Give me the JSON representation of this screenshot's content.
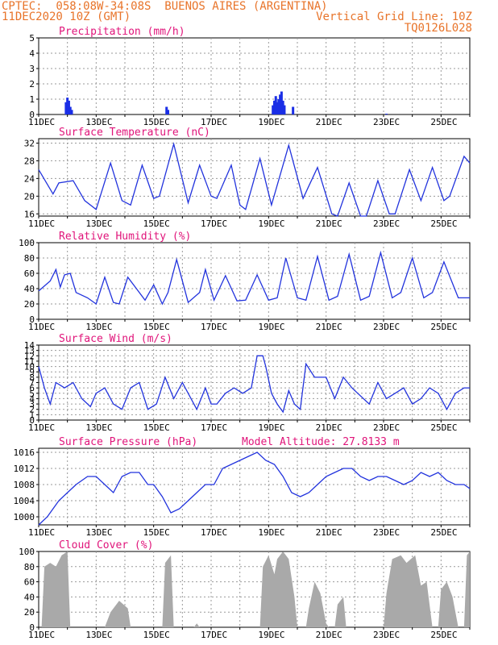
{
  "header": {
    "line1": "CPTEC:  058:08W-34:08S  BUENOS AIRES (ARGENTINA)",
    "line2_left": "11DEC2020 10Z (GMT)",
    "line2_right": "Vertical Grid Line: 10Z",
    "line3_right": "TQ0126L028"
  },
  "colors": {
    "line": "#2233dd",
    "bar": "#1a2ee6",
    "cloud": "#a9a9a9",
    "title": "#e0147a",
    "header": "#e8742a",
    "grid": "#9a9a9a"
  },
  "chart_data": {
    "x_ticks": [
      "11DEC",
      "13DEC",
      "15DEC",
      "17DEC",
      "19DEC",
      "21DEC",
      "23DEC",
      "25DEC"
    ],
    "x_range_days": [
      0,
      15
    ],
    "panels": [
      {
        "id": "precip",
        "type": "bar",
        "title": "Precipitation (mm/h)",
        "ylim": [
          0,
          5
        ],
        "yticks": [
          0,
          1,
          2,
          3,
          4,
          5
        ],
        "points": [
          [
            0.95,
            0.8
          ],
          [
            1.0,
            1.1
          ],
          [
            1.05,
            0.9
          ],
          [
            1.1,
            0.5
          ],
          [
            1.15,
            0.3
          ],
          [
            4.45,
            0.5
          ],
          [
            4.5,
            0.3
          ],
          [
            8.15,
            0.6
          ],
          [
            8.2,
            0.9
          ],
          [
            8.25,
            1.2
          ],
          [
            8.3,
            0.8
          ],
          [
            8.35,
            1.0
          ],
          [
            8.4,
            1.3
          ],
          [
            8.45,
            1.5
          ],
          [
            8.5,
            0.9
          ],
          [
            8.55,
            0.6
          ],
          [
            8.85,
            0.5
          ],
          [
            12.1,
            0.05
          ]
        ]
      },
      {
        "id": "temp",
        "type": "line",
        "title": "Surface Temperature (nC)",
        "ylim": [
          15.5,
          33
        ],
        "yticks": [
          16,
          20,
          24,
          28,
          32
        ],
        "points": [
          [
            0,
            26
          ],
          [
            0.5,
            20.5
          ],
          [
            0.7,
            23
          ],
          [
            1.2,
            23.5
          ],
          [
            1.6,
            19
          ],
          [
            2.0,
            17
          ],
          [
            2.5,
            27.5
          ],
          [
            2.9,
            19
          ],
          [
            3.2,
            18
          ],
          [
            3.6,
            27
          ],
          [
            4.0,
            19.5
          ],
          [
            4.2,
            20
          ],
          [
            4.7,
            31.8
          ],
          [
            5.2,
            18.5
          ],
          [
            5.6,
            27
          ],
          [
            6.0,
            20
          ],
          [
            6.2,
            19.5
          ],
          [
            6.7,
            27
          ],
          [
            7.0,
            18
          ],
          [
            7.2,
            17
          ],
          [
            7.7,
            28.5
          ],
          [
            8.1,
            18
          ],
          [
            8.7,
            31.5
          ],
          [
            9.2,
            19.5
          ],
          [
            9.7,
            26.5
          ],
          [
            10.2,
            16
          ],
          [
            10.4,
            15.5
          ],
          [
            10.8,
            23
          ],
          [
            11.2,
            15.5
          ],
          [
            11.4,
            15.5
          ],
          [
            11.8,
            23.5
          ],
          [
            12.2,
            16
          ],
          [
            12.4,
            16
          ],
          [
            12.9,
            26
          ],
          [
            13.3,
            19
          ],
          [
            13.7,
            26.5
          ],
          [
            14.1,
            19
          ],
          [
            14.3,
            20
          ],
          [
            14.8,
            29
          ],
          [
            15.0,
            27.5
          ]
        ]
      },
      {
        "id": "rh",
        "type": "line",
        "title": "Relative Humidity (%)",
        "ylim": [
          0,
          100
        ],
        "yticks": [
          0,
          20,
          40,
          60,
          80,
          100
        ],
        "points": [
          [
            0,
            37
          ],
          [
            0.4,
            50
          ],
          [
            0.6,
            65
          ],
          [
            0.75,
            42
          ],
          [
            0.9,
            58
          ],
          [
            1.1,
            60
          ],
          [
            1.3,
            35
          ],
          [
            1.7,
            28
          ],
          [
            2.0,
            20
          ],
          [
            2.3,
            55
          ],
          [
            2.6,
            22
          ],
          [
            2.8,
            20
          ],
          [
            3.1,
            55
          ],
          [
            3.4,
            40
          ],
          [
            3.7,
            25
          ],
          [
            4.0,
            45
          ],
          [
            4.3,
            20
          ],
          [
            4.5,
            35
          ],
          [
            4.8,
            78
          ],
          [
            5.2,
            22
          ],
          [
            5.6,
            35
          ],
          [
            5.8,
            65
          ],
          [
            6.1,
            25
          ],
          [
            6.5,
            57
          ],
          [
            6.9,
            24
          ],
          [
            7.2,
            25
          ],
          [
            7.6,
            58
          ],
          [
            8.0,
            25
          ],
          [
            8.3,
            28
          ],
          [
            8.6,
            80
          ],
          [
            9.0,
            28
          ],
          [
            9.3,
            25
          ],
          [
            9.7,
            82
          ],
          [
            10.1,
            25
          ],
          [
            10.4,
            30
          ],
          [
            10.8,
            85
          ],
          [
            11.2,
            25
          ],
          [
            11.5,
            30
          ],
          [
            11.9,
            87
          ],
          [
            12.3,
            28
          ],
          [
            12.6,
            35
          ],
          [
            13.0,
            80
          ],
          [
            13.4,
            28
          ],
          [
            13.7,
            35
          ],
          [
            14.1,
            75
          ],
          [
            14.6,
            28
          ],
          [
            15.0,
            28
          ]
        ]
      },
      {
        "id": "wind",
        "type": "line",
        "title": "Surface Wind (m/s)",
        "ylim": [
          0,
          14
        ],
        "yticks": [
          0,
          1,
          2,
          3,
          4,
          5,
          6,
          7,
          8,
          9,
          10,
          11,
          12,
          13,
          14
        ],
        "points": [
          [
            0,
            10
          ],
          [
            0.2,
            6
          ],
          [
            0.4,
            3
          ],
          [
            0.6,
            7
          ],
          [
            0.9,
            6
          ],
          [
            1.2,
            7
          ],
          [
            1.5,
            4
          ],
          [
            1.8,
            2.5
          ],
          [
            2.0,
            5
          ],
          [
            2.3,
            6
          ],
          [
            2.6,
            3
          ],
          [
            2.9,
            2
          ],
          [
            3.2,
            6
          ],
          [
            3.5,
            7
          ],
          [
            3.8,
            2
          ],
          [
            4.1,
            3
          ],
          [
            4.4,
            8
          ],
          [
            4.7,
            4
          ],
          [
            5.0,
            7
          ],
          [
            5.2,
            5
          ],
          [
            5.5,
            2
          ],
          [
            5.8,
            6
          ],
          [
            6.0,
            3
          ],
          [
            6.2,
            3
          ],
          [
            6.5,
            5
          ],
          [
            6.8,
            6
          ],
          [
            7.1,
            5
          ],
          [
            7.4,
            6
          ],
          [
            7.6,
            12
          ],
          [
            7.8,
            12
          ],
          [
            7.9,
            10
          ],
          [
            8.1,
            5
          ],
          [
            8.3,
            3
          ],
          [
            8.5,
            1.5
          ],
          [
            8.7,
            5.5
          ],
          [
            8.9,
            3
          ],
          [
            9.1,
            2
          ],
          [
            9.3,
            10.5
          ],
          [
            9.6,
            8
          ],
          [
            10.0,
            8
          ],
          [
            10.3,
            4
          ],
          [
            10.6,
            8
          ],
          [
            10.9,
            6
          ],
          [
            11.1,
            5
          ],
          [
            11.5,
            3
          ],
          [
            11.8,
            7
          ],
          [
            12.1,
            4
          ],
          [
            12.4,
            5
          ],
          [
            12.7,
            6
          ],
          [
            13.0,
            3
          ],
          [
            13.3,
            4
          ],
          [
            13.6,
            6
          ],
          [
            13.9,
            5
          ],
          [
            14.2,
            2
          ],
          [
            14.5,
            5
          ],
          [
            14.8,
            6
          ],
          [
            15.0,
            6
          ]
        ]
      },
      {
        "id": "pressure",
        "type": "line",
        "title": "Surface Pressure (hPa)",
        "subtitle": "Model Altitude: 27.8133 m",
        "ylim": [
          998,
          1017
        ],
        "yticks": [
          1000,
          1004,
          1008,
          1012,
          1016
        ],
        "points": [
          [
            0,
            998
          ],
          [
            0.3,
            1000
          ],
          [
            0.7,
            1004
          ],
          [
            1.0,
            1006
          ],
          [
            1.3,
            1008
          ],
          [
            1.7,
            1010
          ],
          [
            2.0,
            1010
          ],
          [
            2.3,
            1008
          ],
          [
            2.6,
            1006
          ],
          [
            2.9,
            1010
          ],
          [
            3.2,
            1011
          ],
          [
            3.5,
            1011
          ],
          [
            3.8,
            1008
          ],
          [
            4.0,
            1008
          ],
          [
            4.3,
            1005
          ],
          [
            4.6,
            1001
          ],
          [
            4.9,
            1002
          ],
          [
            5.2,
            1004
          ],
          [
            5.5,
            1006
          ],
          [
            5.8,
            1008
          ],
          [
            6.1,
            1008
          ],
          [
            6.4,
            1012
          ],
          [
            6.7,
            1013
          ],
          [
            7.0,
            1014
          ],
          [
            7.3,
            1015
          ],
          [
            7.6,
            1016
          ],
          [
            7.9,
            1014
          ],
          [
            8.2,
            1013
          ],
          [
            8.5,
            1010
          ],
          [
            8.8,
            1006
          ],
          [
            9.1,
            1005
          ],
          [
            9.4,
            1006
          ],
          [
            9.7,
            1008
          ],
          [
            10.0,
            1010
          ],
          [
            10.3,
            1011
          ],
          [
            10.6,
            1012
          ],
          [
            10.9,
            1012
          ],
          [
            11.2,
            1010
          ],
          [
            11.5,
            1009
          ],
          [
            11.8,
            1010
          ],
          [
            12.1,
            1010
          ],
          [
            12.4,
            1009
          ],
          [
            12.7,
            1008
          ],
          [
            13.0,
            1009
          ],
          [
            13.3,
            1011
          ],
          [
            13.6,
            1010
          ],
          [
            13.9,
            1011
          ],
          [
            14.2,
            1009
          ],
          [
            14.5,
            1008
          ],
          [
            14.8,
            1008
          ],
          [
            15.0,
            1007
          ]
        ]
      },
      {
        "id": "cloud",
        "type": "area",
        "title": "Cloud Cover (%)",
        "ylim": [
          0,
          100
        ],
        "yticks": [
          0,
          20,
          40,
          60,
          80,
          100
        ],
        "points": [
          [
            0,
            0
          ],
          [
            0.1,
            0
          ],
          [
            0.2,
            80
          ],
          [
            0.4,
            85
          ],
          [
            0.6,
            80
          ],
          [
            0.8,
            95
          ],
          [
            1.0,
            100
          ],
          [
            1.1,
            0
          ],
          [
            2.3,
            0
          ],
          [
            2.5,
            20
          ],
          [
            2.8,
            35
          ],
          [
            3.1,
            25
          ],
          [
            3.2,
            0
          ],
          [
            4.3,
            0
          ],
          [
            4.4,
            85
          ],
          [
            4.6,
            95
          ],
          [
            4.7,
            0
          ],
          [
            5.4,
            0
          ],
          [
            5.5,
            5
          ],
          [
            5.6,
            0
          ],
          [
            7.7,
            0
          ],
          [
            7.8,
            80
          ],
          [
            8.0,
            95
          ],
          [
            8.2,
            70
          ],
          [
            8.3,
            90
          ],
          [
            8.5,
            100
          ],
          [
            8.7,
            90
          ],
          [
            8.9,
            40
          ],
          [
            9.0,
            0
          ],
          [
            9.3,
            0
          ],
          [
            9.4,
            25
          ],
          [
            9.6,
            60
          ],
          [
            9.8,
            45
          ],
          [
            10.0,
            5
          ],
          [
            10.1,
            0
          ],
          [
            10.3,
            0
          ],
          [
            10.4,
            30
          ],
          [
            10.6,
            40
          ],
          [
            10.7,
            0
          ],
          [
            12.0,
            0
          ],
          [
            12.1,
            45
          ],
          [
            12.3,
            90
          ],
          [
            12.6,
            95
          ],
          [
            12.8,
            85
          ],
          [
            13.1,
            95
          ],
          [
            13.3,
            55
          ],
          [
            13.5,
            60
          ],
          [
            13.7,
            0
          ],
          [
            13.9,
            0
          ],
          [
            14.0,
            50
          ],
          [
            14.2,
            60
          ],
          [
            14.4,
            40
          ],
          [
            14.6,
            0
          ],
          [
            14.8,
            0
          ],
          [
            14.9,
            95
          ],
          [
            15.0,
            100
          ]
        ]
      }
    ]
  }
}
